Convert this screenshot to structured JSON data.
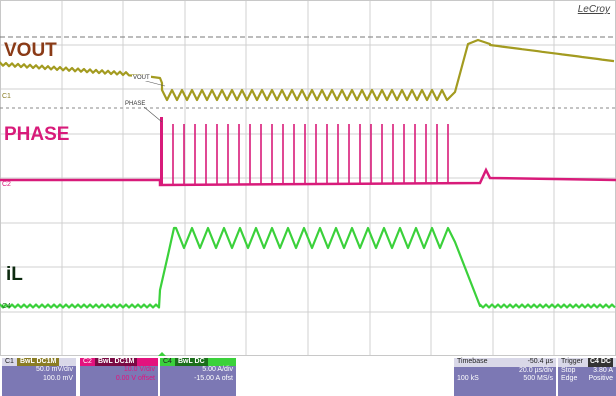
{
  "overlay_labels": {
    "vout": "VOUT",
    "phase": "PHASE",
    "il": "iL"
  },
  "brand": "LeCroy",
  "trace_tags": {
    "vout": "VOUT",
    "phase": "PHASE"
  },
  "trace_colors": {
    "vout": "#a39b20",
    "phase": "#d81b7a",
    "il": "#3bd13b"
  },
  "channels": [
    {
      "num": "C1",
      "tag": "BwL DC1M",
      "lines": [
        "50.0 mV/div",
        "100.0 mV"
      ]
    },
    {
      "num": "C2",
      "tag": "BwL DC1M",
      "lines": [
        "10.0 V/div",
        "0.00 V offset"
      ]
    },
    {
      "num": "C4",
      "tag": "BwL DC",
      "lines": [
        "5.00 A/div",
        "-15.00 A ofst"
      ]
    }
  ],
  "timebase": {
    "label": "Timebase",
    "offset": "-50.4 µs",
    "per_div": "20.0 µs/div",
    "samples": "100 kS",
    "rate": "500 MS/s"
  },
  "trigger": {
    "label": "Trigger",
    "tag": "C4 DC",
    "mode": "Stop",
    "level": "3.80 A",
    "type": "Edge",
    "slope": "Positive"
  }
}
